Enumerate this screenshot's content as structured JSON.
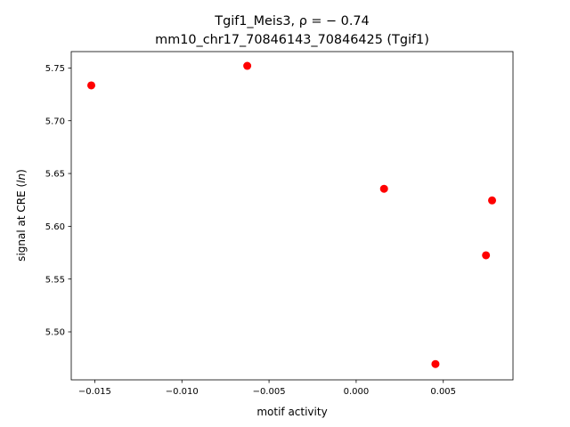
{
  "chart_data": {
    "type": "scatter",
    "title_line1": "Tgif1_Meis3, ρ = − 0.74",
    "title_line2": "mm10_chr17_70846143_70846425 (Tgif1)",
    "xlabel": "motif activity",
    "ylabel_prefix": "signal at CRE (",
    "ylabel_italic": "ln",
    "ylabel_suffix": ")",
    "xlim": [
      -0.01635,
      0.009
    ],
    "ylim": [
      5.4545,
      5.7655
    ],
    "xticks": [
      -0.015,
      -0.01,
      -0.005,
      0.0,
      0.005
    ],
    "xtick_labels": [
      "−0.015",
      "−0.010",
      "−0.005",
      "0.000",
      "0.005"
    ],
    "yticks": [
      5.5,
      5.55,
      5.6,
      5.65,
      5.7,
      5.75
    ],
    "ytick_labels": [
      "5.50",
      "5.55",
      "5.60",
      "5.65",
      "5.70",
      "5.75"
    ],
    "points": [
      {
        "x": -0.0152,
        "y": 5.7335
      },
      {
        "x": -0.00625,
        "y": 5.752
      },
      {
        "x": 0.0016,
        "y": 5.6355
      },
      {
        "x": 0.0078,
        "y": 5.6245
      },
      {
        "x": 0.00745,
        "y": 5.5725
      },
      {
        "x": 0.00455,
        "y": 5.4695
      }
    ],
    "marker_color": "#ff0000",
    "grid": false,
    "legend": "none"
  }
}
